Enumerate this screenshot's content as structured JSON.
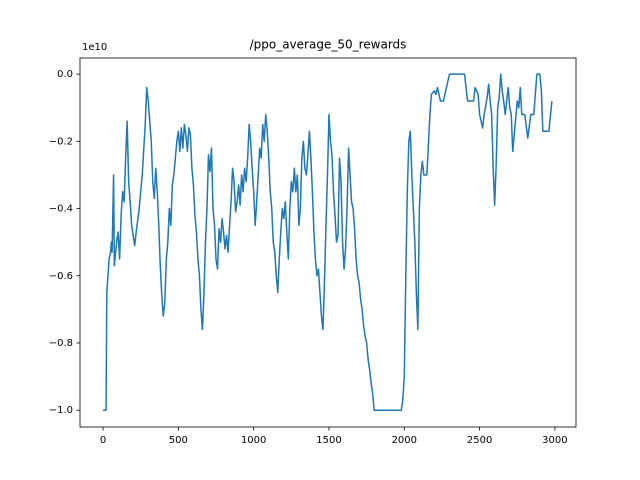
{
  "chart_data": {
    "type": "line",
    "title": "/ppo_average_50_rewards",
    "y_offset_label": "1e10",
    "color": "#1f77b4",
    "xlim": [
      -153,
      3140
    ],
    "ylim": [
      -1.05,
      0.048
    ],
    "xticks": [
      0,
      500,
      1000,
      1500,
      2000,
      2500,
      3000
    ],
    "yticks": [
      {
        "value": 0.0,
        "label": "0.0"
      },
      {
        "value": -0.2,
        "label": "−0.2"
      },
      {
        "value": -0.4,
        "label": "−0.4"
      },
      {
        "value": -0.6,
        "label": "−0.6"
      },
      {
        "value": -0.8,
        "label": "−0.8"
      },
      {
        "value": -1.0,
        "label": "−1.0"
      }
    ],
    "x": [
      0,
      20,
      25,
      40,
      50,
      55,
      60,
      70,
      75,
      90,
      100,
      110,
      120,
      130,
      140,
      150,
      160,
      170,
      180,
      190,
      200,
      210,
      220,
      240,
      260,
      280,
      290,
      300,
      310,
      320,
      330,
      340,
      350,
      360,
      370,
      380,
      390,
      400,
      410,
      420,
      430,
      440,
      450,
      460,
      470,
      480,
      490,
      500,
      510,
      520,
      530,
      540,
      550,
      560,
      570,
      580,
      590,
      600,
      610,
      620,
      630,
      640,
      650,
      660,
      670,
      680,
      690,
      700,
      710,
      720,
      730,
      740,
      750,
      760,
      770,
      780,
      790,
      800,
      810,
      820,
      830,
      840,
      850,
      860,
      870,
      880,
      890,
      900,
      910,
      920,
      930,
      940,
      950,
      960,
      970,
      980,
      990,
      1000,
      1010,
      1020,
      1030,
      1040,
      1050,
      1060,
      1070,
      1080,
      1090,
      1100,
      1110,
      1120,
      1130,
      1140,
      1150,
      1160,
      1170,
      1180,
      1190,
      1200,
      1210,
      1220,
      1230,
      1240,
      1250,
      1260,
      1270,
      1280,
      1290,
      1300,
      1310,
      1320,
      1330,
      1340,
      1350,
      1360,
      1370,
      1380,
      1390,
      1400,
      1410,
      1420,
      1430,
      1440,
      1450,
      1460,
      1470,
      1480,
      1490,
      1500,
      1510,
      1520,
      1530,
      1540,
      1550,
      1560,
      1570,
      1580,
      1590,
      1600,
      1610,
      1620,
      1630,
      1640,
      1650,
      1660,
      1670,
      1680,
      1690,
      1700,
      1710,
      1720,
      1730,
      1740,
      1750,
      1760,
      1770,
      1780,
      1790,
      1800,
      1850,
      1900,
      1950,
      1980,
      1990,
      2000,
      2010,
      2020,
      2030,
      2040,
      2050,
      2060,
      2070,
      2080,
      2090,
      2100,
      2110,
      2120,
      2130,
      2150,
      2170,
      2180,
      2200,
      2210,
      2220,
      2240,
      2260,
      2280,
      2300,
      2350,
      2400,
      2420,
      2460,
      2470,
      2490,
      2500,
      2520,
      2530,
      2550,
      2560,
      2570,
      2580,
      2590,
      2600,
      2610,
      2620,
      2630,
      2640,
      2650,
      2660,
      2670,
      2690,
      2700,
      2710,
      2720,
      2750,
      2760,
      2770,
      2780,
      2800,
      2820,
      2840,
      2860,
      2870,
      2880,
      2900,
      2910,
      2920,
      2960,
      2980
    ],
    "values": [
      -1.0,
      -1.0,
      -0.65,
      -0.55,
      -0.53,
      -0.5,
      -0.53,
      -0.3,
      -0.57,
      -0.5,
      -0.47,
      -0.55,
      -0.42,
      -0.35,
      -0.38,
      -0.25,
      -0.14,
      -0.32,
      -0.38,
      -0.45,
      -0.48,
      -0.51,
      -0.47,
      -0.4,
      -0.3,
      -0.15,
      -0.04,
      -0.08,
      -0.14,
      -0.2,
      -0.32,
      -0.37,
      -0.28,
      -0.35,
      -0.45,
      -0.57,
      -0.66,
      -0.72,
      -0.68,
      -0.55,
      -0.5,
      -0.4,
      -0.45,
      -0.33,
      -0.3,
      -0.25,
      -0.2,
      -0.17,
      -0.23,
      -0.16,
      -0.22,
      -0.15,
      -0.18,
      -0.23,
      -0.16,
      -0.18,
      -0.28,
      -0.33,
      -0.42,
      -0.47,
      -0.55,
      -0.6,
      -0.7,
      -0.76,
      -0.65,
      -0.5,
      -0.4,
      -0.24,
      -0.29,
      -0.22,
      -0.4,
      -0.45,
      -0.55,
      -0.58,
      -0.46,
      -0.5,
      -0.43,
      -0.47,
      -0.52,
      -0.48,
      -0.53,
      -0.45,
      -0.38,
      -0.28,
      -0.32,
      -0.41,
      -0.38,
      -0.33,
      -0.39,
      -0.3,
      -0.35,
      -0.28,
      -0.32,
      -0.25,
      -0.15,
      -0.2,
      -0.28,
      -0.35,
      -0.45,
      -0.38,
      -0.3,
      -0.22,
      -0.25,
      -0.15,
      -0.2,
      -0.12,
      -0.17,
      -0.25,
      -0.35,
      -0.4,
      -0.5,
      -0.53,
      -0.6,
      -0.65,
      -0.55,
      -0.47,
      -0.4,
      -0.43,
      -0.38,
      -0.47,
      -0.55,
      -0.4,
      -0.32,
      -0.35,
      -0.28,
      -0.35,
      -0.3,
      -0.45,
      -0.4,
      -0.25,
      -0.2,
      -0.28,
      -0.3,
      -0.24,
      -0.17,
      -0.25,
      -0.35,
      -0.47,
      -0.55,
      -0.6,
      -0.58,
      -0.65,
      -0.72,
      -0.76,
      -0.62,
      -0.45,
      -0.3,
      -0.12,
      -0.2,
      -0.24,
      -0.35,
      -0.42,
      -0.5,
      -0.48,
      -0.25,
      -0.32,
      -0.5,
      -0.58,
      -0.52,
      -0.4,
      -0.22,
      -0.3,
      -0.38,
      -0.4,
      -0.46,
      -0.55,
      -0.6,
      -0.62,
      -0.67,
      -0.7,
      -0.75,
      -0.78,
      -0.8,
      -0.85,
      -0.88,
      -0.92,
      -0.95,
      -1.0,
      -1.0,
      -1.0,
      -1.0,
      -1.0,
      -0.97,
      -0.9,
      -0.6,
      -0.35,
      -0.2,
      -0.17,
      -0.3,
      -0.4,
      -0.5,
      -0.65,
      -0.76,
      -0.4,
      -0.3,
      -0.26,
      -0.3,
      -0.3,
      -0.12,
      -0.06,
      -0.05,
      -0.06,
      -0.04,
      -0.08,
      -0.08,
      -0.04,
      0.0,
      0.0,
      0.0,
      -0.08,
      -0.08,
      -0.04,
      -0.06,
      -0.12,
      -0.16,
      -0.12,
      -0.07,
      -0.03,
      -0.08,
      -0.12,
      -0.28,
      -0.39,
      -0.27,
      -0.1,
      -0.07,
      0.0,
      -0.05,
      -0.08,
      -0.12,
      -0.04,
      -0.1,
      -0.12,
      -0.23,
      -0.08,
      -0.1,
      -0.04,
      -0.12,
      -0.12,
      -0.19,
      -0.12,
      -0.12,
      -0.06,
      0.0,
      0.0,
      -0.05,
      -0.17,
      -0.17,
      -0.08
    ]
  }
}
